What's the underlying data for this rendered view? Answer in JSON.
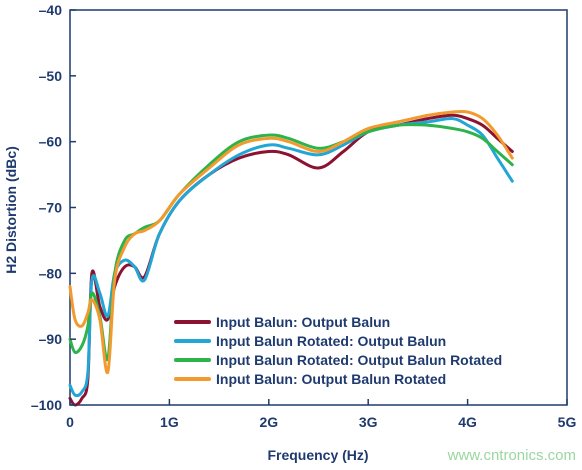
{
  "chart_data": {
    "type": "line",
    "title": "",
    "xlabel": "Frequency (Hz)",
    "ylabel": "H2 Distortion (dBc)",
    "xlim": [
      0,
      5
    ],
    "ylim": [
      -100,
      -40
    ],
    "x_ticks": [
      0,
      1,
      2,
      3,
      4,
      5
    ],
    "x_tick_labels": [
      "0",
      "1G",
      "2G",
      "3G",
      "4G",
      "5G"
    ],
    "y_ticks": [
      -100,
      -90,
      -80,
      -70,
      -60,
      -50,
      -40
    ],
    "y_tick_labels": [
      "–100",
      "–90",
      "–80",
      "–70",
      "–60",
      "–50",
      "–40"
    ],
    "grid": false,
    "legend_position": "bottom-right",
    "series": [
      {
        "name": "Input Balun: Output Balun",
        "color": "#8b1230",
        "x": [
          0.0,
          0.05,
          0.12,
          0.18,
          0.22,
          0.3,
          0.38,
          0.45,
          0.55,
          0.65,
          0.75,
          0.9,
          1.1,
          1.4,
          1.7,
          2.0,
          2.2,
          2.5,
          2.75,
          3.0,
          3.3,
          3.6,
          3.85,
          4.0,
          4.15,
          4.3,
          4.45
        ],
        "y": [
          -99.0,
          -100.0,
          -99.0,
          -96.0,
          -80.0,
          -85.0,
          -87.0,
          -82.0,
          -79.0,
          -79.0,
          -80.5,
          -74.0,
          -69.0,
          -65.0,
          -62.5,
          -61.5,
          -62.0,
          -64.0,
          -61.5,
          -58.5,
          -57.5,
          -56.5,
          -56.0,
          -56.5,
          -57.5,
          -59.5,
          -61.5
        ]
      },
      {
        "name": "Input Balun Rotated: Output Balun",
        "color": "#22a6d6",
        "x": [
          0.0,
          0.05,
          0.12,
          0.18,
          0.22,
          0.3,
          0.38,
          0.45,
          0.55,
          0.65,
          0.75,
          0.9,
          1.1,
          1.4,
          1.7,
          2.0,
          2.2,
          2.5,
          2.75,
          3.0,
          3.3,
          3.6,
          3.85,
          4.0,
          4.15,
          4.3,
          4.45
        ],
        "y": [
          -97.0,
          -98.5,
          -98.0,
          -95.0,
          -81.0,
          -83.0,
          -86.5,
          -80.0,
          -78.0,
          -79.0,
          -81.0,
          -74.0,
          -69.0,
          -65.0,
          -62.0,
          -60.5,
          -61.0,
          -62.0,
          -60.5,
          -58.5,
          -57.5,
          -57.0,
          -56.5,
          -57.5,
          -59.0,
          -62.5,
          -66.0
        ]
      },
      {
        "name": "Input Balun Rotated: Output Balun Rotated",
        "color": "#2db34a",
        "x": [
          0.0,
          0.05,
          0.12,
          0.18,
          0.22,
          0.3,
          0.38,
          0.45,
          0.55,
          0.65,
          0.75,
          0.9,
          1.1,
          1.4,
          1.7,
          2.0,
          2.2,
          2.5,
          2.75,
          3.0,
          3.3,
          3.6,
          3.85,
          4.0,
          4.15,
          4.3,
          4.45
        ],
        "y": [
          -90.0,
          -92.0,
          -91.0,
          -88.0,
          -83.0,
          -86.5,
          -93.0,
          -80.0,
          -75.0,
          -74.0,
          -73.0,
          -72.0,
          -68.0,
          -63.5,
          -60.0,
          -59.0,
          -59.5,
          -61.0,
          -60.0,
          -58.5,
          -57.5,
          -57.5,
          -58.0,
          -58.5,
          -59.5,
          -61.5,
          -63.5
        ]
      },
      {
        "name": "Input Balun: Output Balun Rotated",
        "color": "#f39a2e",
        "x": [
          0.0,
          0.05,
          0.12,
          0.18,
          0.22,
          0.3,
          0.38,
          0.45,
          0.55,
          0.65,
          0.75,
          0.9,
          1.1,
          1.4,
          1.7,
          2.0,
          2.2,
          2.5,
          2.75,
          3.0,
          3.3,
          3.6,
          3.85,
          4.0,
          4.15,
          4.3,
          4.45
        ],
        "y": [
          -82.0,
          -87.0,
          -88.0,
          -86.0,
          -84.0,
          -87.0,
          -95.0,
          -81.0,
          -76.0,
          -74.0,
          -73.5,
          -72.0,
          -68.0,
          -64.0,
          -60.5,
          -59.5,
          -60.0,
          -61.5,
          -60.0,
          -58.0,
          -57.0,
          -56.0,
          -55.5,
          -55.5,
          -56.5,
          -59.0,
          -62.5
        ]
      }
    ]
  },
  "watermark": "www.cntronics.com"
}
